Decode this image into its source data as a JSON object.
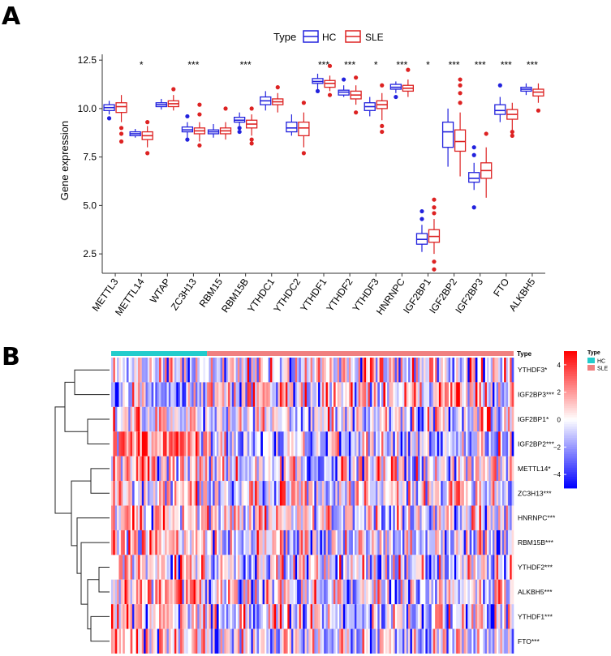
{
  "panel_labels": [
    "A",
    "B"
  ],
  "chart_data": [
    {
      "type": "box",
      "panel": "A",
      "ylabel": "Gene expression",
      "ylim": [
        1.5,
        12.8
      ],
      "yticks": [
        2.5,
        5.0,
        7.5,
        10.0,
        12.5
      ],
      "ytick_labels": [
        "2.5",
        "5.0",
        "7.5",
        "10.0",
        "12.5"
      ],
      "legend": {
        "title": "Type",
        "placement": "top",
        "entries": [
          {
            "name": "HC",
            "color": "#2222dd"
          },
          {
            "name": "SLE",
            "color": "#dd2222"
          }
        ]
      },
      "categories": [
        "METTL3",
        "METTL14",
        "WTAP",
        "ZC3H13",
        "RBM15",
        "RBM15B",
        "YTHDC1",
        "YTHDC2",
        "YTHDF1",
        "YTHDF2",
        "YTHDF3",
        "HNRNPC",
        "IGF2BP1",
        "IGF2BP2",
        "IGF2BP3",
        "FTO",
        "ALKBH5"
      ],
      "significance": [
        "",
        "*",
        "",
        "***",
        "",
        "***",
        "",
        "",
        "***",
        "***",
        "*",
        "***",
        "*",
        "***",
        "***",
        "***",
        "***"
      ],
      "series": [
        {
          "name": "HC",
          "color": "#2222dd",
          "boxes": [
            {
              "min": 9.7,
              "q1": 9.9,
              "median": 10.05,
              "q3": 10.2,
              "max": 10.4,
              "outliers": [
                9.5
              ]
            },
            {
              "min": 8.5,
              "q1": 8.6,
              "median": 8.7,
              "q3": 8.8,
              "max": 8.95,
              "outliers": []
            },
            {
              "min": 9.95,
              "q1": 10.1,
              "median": 10.2,
              "q3": 10.3,
              "max": 10.5,
              "outliers": []
            },
            {
              "min": 8.5,
              "q1": 8.8,
              "median": 8.9,
              "q3": 9.05,
              "max": 9.3,
              "outliers": [
                8.4,
                9.6
              ]
            },
            {
              "min": 8.5,
              "q1": 8.7,
              "median": 8.8,
              "q3": 8.9,
              "max": 9.2,
              "outliers": []
            },
            {
              "min": 9.1,
              "q1": 9.3,
              "median": 9.4,
              "q3": 9.55,
              "max": 9.8,
              "outliers": [
                9.0,
                8.8
              ]
            },
            {
              "min": 9.9,
              "q1": 10.2,
              "median": 10.4,
              "q3": 10.6,
              "max": 10.9,
              "outliers": []
            },
            {
              "min": 8.6,
              "q1": 8.8,
              "median": 9.0,
              "q3": 9.3,
              "max": 9.7,
              "outliers": []
            },
            {
              "min": 11.0,
              "q1": 11.3,
              "median": 11.4,
              "q3": 11.55,
              "max": 11.8,
              "outliers": [
                10.9
              ]
            },
            {
              "min": 10.6,
              "q1": 10.7,
              "median": 10.85,
              "q3": 10.95,
              "max": 11.2,
              "outliers": [
                11.5
              ]
            },
            {
              "min": 9.6,
              "q1": 9.9,
              "median": 10.1,
              "q3": 10.3,
              "max": 10.6,
              "outliers": []
            },
            {
              "min": 10.8,
              "q1": 11.0,
              "median": 11.1,
              "q3": 11.25,
              "max": 11.4,
              "outliers": [
                10.6
              ]
            },
            {
              "min": 2.6,
              "q1": 3.0,
              "median": 3.25,
              "q3": 3.55,
              "max": 4.0,
              "outliers": [
                4.3,
                4.7
              ]
            },
            {
              "min": 7.0,
              "q1": 8.0,
              "median": 8.8,
              "q3": 9.3,
              "max": 10.0,
              "outliers": []
            },
            {
              "min": 5.8,
              "q1": 6.2,
              "median": 6.4,
              "q3": 6.7,
              "max": 7.2,
              "outliers": [
                7.6,
                8.0,
                4.9
              ]
            },
            {
              "min": 9.3,
              "q1": 9.7,
              "median": 9.9,
              "q3": 10.2,
              "max": 10.6,
              "outliers": [
                11.2
              ]
            },
            {
              "min": 10.7,
              "q1": 10.9,
              "median": 11.0,
              "q3": 11.1,
              "max": 11.3,
              "outliers": []
            }
          ]
        },
        {
          "name": "SLE",
          "color": "#dd2222",
          "boxes": [
            {
              "min": 9.3,
              "q1": 9.8,
              "median": 10.1,
              "q3": 10.3,
              "max": 10.7,
              "outliers": [
                8.3,
                8.7,
                9.0
              ]
            },
            {
              "min": 8.0,
              "q1": 8.4,
              "median": 8.6,
              "q3": 8.8,
              "max": 9.1,
              "outliers": [
                7.7,
                9.3
              ]
            },
            {
              "min": 9.9,
              "q1": 10.1,
              "median": 10.25,
              "q3": 10.4,
              "max": 10.7,
              "outliers": [
                11.0
              ]
            },
            {
              "min": 8.3,
              "q1": 8.7,
              "median": 8.85,
              "q3": 9.0,
              "max": 9.3,
              "outliers": [
                8.1,
                9.7,
                10.2
              ]
            },
            {
              "min": 8.4,
              "q1": 8.7,
              "median": 8.85,
              "q3": 9.0,
              "max": 9.3,
              "outliers": [
                10.0
              ]
            },
            {
              "min": 8.6,
              "q1": 9.0,
              "median": 9.2,
              "q3": 9.4,
              "max": 9.7,
              "outliers": [
                8.2,
                8.4,
                10.0
              ]
            },
            {
              "min": 9.8,
              "q1": 10.2,
              "median": 10.35,
              "q3": 10.5,
              "max": 10.8,
              "outliers": [
                11.1
              ]
            },
            {
              "min": 8.0,
              "q1": 8.6,
              "median": 9.0,
              "q3": 9.3,
              "max": 9.8,
              "outliers": [
                7.7,
                10.3
              ]
            },
            {
              "min": 10.9,
              "q1": 11.1,
              "median": 11.3,
              "q3": 11.45,
              "max": 11.7,
              "outliers": [
                10.7,
                12.2
              ]
            },
            {
              "min": 10.2,
              "q1": 10.5,
              "median": 10.7,
              "q3": 10.9,
              "max": 11.2,
              "outliers": [
                9.8,
                11.6
              ]
            },
            {
              "min": 9.4,
              "q1": 10.0,
              "median": 10.2,
              "q3": 10.4,
              "max": 10.8,
              "outliers": [
                8.8,
                9.1,
                11.2
              ]
            },
            {
              "min": 10.6,
              "q1": 10.9,
              "median": 11.05,
              "q3": 11.2,
              "max": 11.5,
              "outliers": [
                12.0
              ]
            },
            {
              "min": 2.5,
              "q1": 3.1,
              "median": 3.4,
              "q3": 3.75,
              "max": 4.3,
              "outliers": [
                1.7,
                2.1,
                4.6,
                4.9,
                5.3
              ]
            },
            {
              "min": 6.5,
              "q1": 7.8,
              "median": 8.3,
              "q3": 8.9,
              "max": 9.8,
              "outliers": [
                10.3,
                10.8,
                11.2,
                11.5
              ]
            },
            {
              "min": 5.4,
              "q1": 6.4,
              "median": 6.8,
              "q3": 7.2,
              "max": 8.0,
              "outliers": [
                8.7
              ]
            },
            {
              "min": 8.9,
              "q1": 9.45,
              "median": 9.7,
              "q3": 9.95,
              "max": 10.3,
              "outliers": [
                8.6,
                8.8
              ]
            },
            {
              "min": 10.3,
              "q1": 10.65,
              "median": 10.85,
              "q3": 11.0,
              "max": 11.3,
              "outliers": [
                9.9
              ]
            }
          ]
        }
      ]
    },
    {
      "type": "heatmap",
      "panel": "B",
      "annotation_label": "Type",
      "annotation_groups": [
        {
          "name": "HC",
          "color": "#22cccc",
          "fraction": 0.24
        },
        {
          "name": "SLE",
          "color": "#f08080",
          "fraction": 0.76
        }
      ],
      "rows": [
        "YTHDF3*",
        "IGF2BP3***",
        "IGF2BP1*",
        "IGF2BP2***",
        "METTL14*",
        "ZC3H13***",
        "HNRNPC***",
        "RBM15B***",
        "YTHDF2***",
        "ALKBH5***",
        "YTHDF1***",
        "FTO***"
      ],
      "row_trends": [
        0.0,
        -0.6,
        0.0,
        0.9,
        0.2,
        0.2,
        0.3,
        0.5,
        0.3,
        0.4,
        0.5,
        0.4
      ],
      "n_columns": 210,
      "color_scale": {
        "min": -5,
        "max": 5,
        "low_color": "#0000ff",
        "mid_color": "#ffffff",
        "high_color": "#ff0000",
        "ticks": [
          4,
          2,
          0,
          -2,
          -4
        ],
        "tick_labels": [
          "4",
          "2",
          "0",
          "−2",
          "−4"
        ]
      },
      "legend": {
        "title": "Type",
        "entries": [
          {
            "name": "HC",
            "color": "#22cccc"
          },
          {
            "name": "SLE",
            "color": "#f08080"
          }
        ]
      }
    }
  ]
}
